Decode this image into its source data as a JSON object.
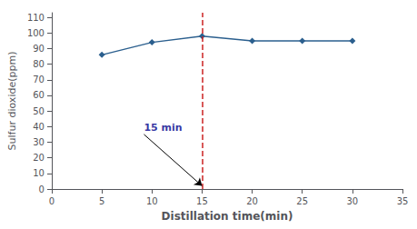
{
  "chart_data": {
    "type": "line",
    "x": [
      5,
      10,
      15,
      20,
      25,
      30
    ],
    "values": [
      86,
      94,
      98,
      95,
      95,
      95
    ],
    "color": "#2B5F8E",
    "marker": "diamond",
    "xlabel": "Distillation time(min)",
    "ylabel": "Sulfur dioxide(ppm)",
    "xlim": [
      0,
      35
    ],
    "ylim": [
      0,
      113
    ],
    "xticks": [
      0,
      5,
      10,
      15,
      20,
      25,
      30,
      35
    ],
    "yticks": [
      0,
      10,
      20,
      30,
      40,
      50,
      60,
      70,
      80,
      90,
      100,
      110
    ],
    "grid": false,
    "vlines": [
      {
        "x": 15,
        "color": "#CC2222",
        "line_style": "dashed"
      }
    ],
    "annotations": [
      {
        "text": "15 min",
        "xy": [
          15,
          2
        ],
        "xytext": [
          9.2,
          35
        ],
        "color": "#00008B"
      }
    ]
  }
}
